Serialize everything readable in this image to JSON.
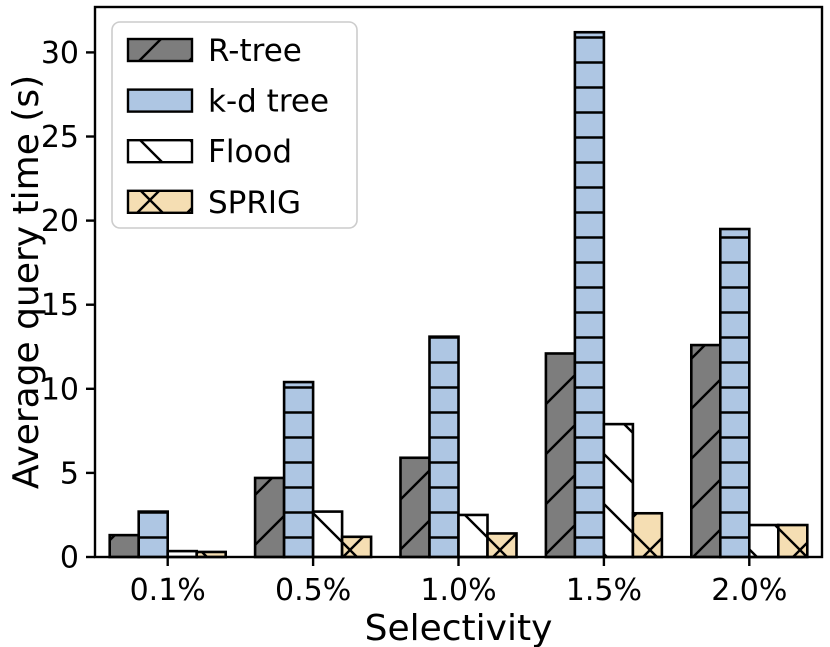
{
  "chart_data": {
    "type": "bar",
    "title": "",
    "xlabel": "Selectivity",
    "ylabel": "Average query time (s)",
    "categories": [
      "0.1%",
      "0.5%",
      "1.0%",
      "1.5%",
      "2.0%"
    ],
    "series": [
      {
        "name": "R-tree",
        "color": "#7d7d7d",
        "edge_color": "#000000",
        "hatch": "/",
        "values": [
          1.3,
          4.7,
          5.9,
          12.1,
          12.6
        ]
      },
      {
        "name": "k-d tree",
        "color": "#aec6e3",
        "edge_color": "#000000",
        "hatch": "-",
        "values": [
          2.7,
          10.4,
          13.1,
          31.2,
          19.5
        ]
      },
      {
        "name": "Flood",
        "color": "#ffffff",
        "edge_color": "#000000",
        "hatch": "\\",
        "values": [
          0.35,
          2.7,
          2.5,
          7.9,
          1.9
        ]
      },
      {
        "name": "SPRIG",
        "color": "#f5deb3",
        "edge_color": "#000000",
        "hatch": "x",
        "values": [
          0.3,
          1.2,
          1.4,
          2.6,
          1.9
        ]
      }
    ],
    "yticks": [
      0,
      5,
      10,
      15,
      20,
      25,
      30
    ],
    "ylim": [
      0,
      32.7
    ],
    "grid": false,
    "legend": {
      "position": "upper-left",
      "entries": [
        "R-tree",
        "k-d tree",
        "Flood",
        "SPRIG"
      ],
      "border_color": "#cccccc",
      "background": "#ffffff"
    },
    "background": "#ffffff",
    "axis_color": "#000000"
  }
}
